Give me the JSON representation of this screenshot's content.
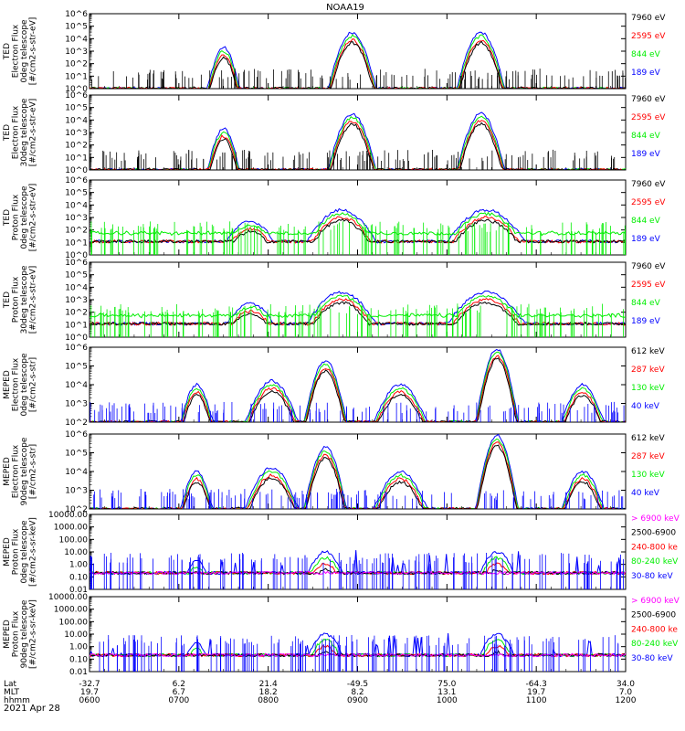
{
  "title": "NOAA19",
  "date": "2021 Apr 28",
  "colors": {
    "black": "#000000",
    "red": "#ff0000",
    "green": "#00ee00",
    "blue": "#0000ff",
    "magenta": "#ff00ff"
  },
  "xaxis": {
    "row_labels": [
      "Lat",
      "MLT",
      "hhmm"
    ],
    "columns": [
      {
        "lat": "-32.7",
        "mlt": "19.7",
        "hhmm": "0600"
      },
      {
        "lat": "6.2",
        "mlt": "6.7",
        "hhmm": "0700"
      },
      {
        "lat": "21.4",
        "mlt": "18.2",
        "hhmm": "0800"
      },
      {
        "lat": "-49.5",
        "mlt": "8.2",
        "hhmm": "0900"
      },
      {
        "lat": "75.0",
        "mlt": "13.1",
        "hhmm": "1000"
      },
      {
        "lat": "-64.3",
        "mlt": "19.7",
        "hhmm": "1100"
      },
      {
        "lat": "34.0",
        "mlt": "7.0",
        "hhmm": "1200"
      }
    ]
  },
  "chart_data": [
    {
      "type": "line",
      "ylabel": [
        "TED",
        "Electron Flux",
        "0deg telescope",
        "[#/cm2-s-str-eV]"
      ],
      "ylim": [
        1,
        1000000
      ],
      "yscale": "log",
      "yticks": [
        "10^0",
        "10^1",
        "10^2",
        "10^3",
        "10^4",
        "10^5",
        "10^6"
      ],
      "legend": [
        {
          "text": "7960 eV",
          "color": "#000000"
        },
        {
          "text": "2595 eV",
          "color": "#ff0000"
        },
        {
          "text": "844 eV",
          "color": "#00ee00"
        },
        {
          "text": "189 eV",
          "color": "#0000ff"
        }
      ]
    },
    {
      "type": "line",
      "ylabel": [
        "TED",
        "Electron Flux",
        "30deg telescope",
        "[#/cm2-s-str-eV]"
      ],
      "ylim": [
        1,
        1000000
      ],
      "yscale": "log",
      "yticks": [
        "10^0",
        "10^1",
        "10^2",
        "10^3",
        "10^4",
        "10^5",
        "10^6"
      ],
      "legend": [
        {
          "text": "7960 eV",
          "color": "#000000"
        },
        {
          "text": "2595 eV",
          "color": "#ff0000"
        },
        {
          "text": "844 eV",
          "color": "#00ee00"
        },
        {
          "text": "189 eV",
          "color": "#0000ff"
        }
      ]
    },
    {
      "type": "line",
      "ylabel": [
        "TED",
        "Proton Flux",
        "0deg telescope",
        "[#/cm2-s-str-eV]"
      ],
      "ylim": [
        1,
        1000000
      ],
      "yscale": "log",
      "yticks": [
        "10^0",
        "10^1",
        "10^2",
        "10^3",
        "10^4",
        "10^5",
        "10^6"
      ],
      "legend": [
        {
          "text": "7960 eV",
          "color": "#000000"
        },
        {
          "text": "2595 eV",
          "color": "#ff0000"
        },
        {
          "text": "844 eV",
          "color": "#00ee00"
        },
        {
          "text": "189 eV",
          "color": "#0000ff"
        }
      ]
    },
    {
      "type": "line",
      "ylabel": [
        "TED",
        "Proton Flux",
        "30deg telescope",
        "[#/cm2-s-str-eV]"
      ],
      "ylim": [
        1,
        1000000
      ],
      "yscale": "log",
      "yticks": [
        "10^0",
        "10^1",
        "10^2",
        "10^3",
        "10^4",
        "10^5",
        "10^6"
      ],
      "legend": [
        {
          "text": "7960 eV",
          "color": "#000000"
        },
        {
          "text": "2595 eV",
          "color": "#ff0000"
        },
        {
          "text": "844 eV",
          "color": "#00ee00"
        },
        {
          "text": "189 eV",
          "color": "#0000ff"
        }
      ]
    },
    {
      "type": "line",
      "ylabel": [
        "MEPED",
        "Electron Flux",
        "0deg telescope",
        "[#/cm2-s-str]"
      ],
      "ylim": [
        100,
        1000000
      ],
      "yscale": "log",
      "yticks": [
        "10^2",
        "10^3",
        "10^4",
        "10^5",
        "10^6"
      ],
      "legend": [
        {
          "text": "612 keV",
          "color": "#000000"
        },
        {
          "text": "287 keV",
          "color": "#ff0000"
        },
        {
          "text": "130 keV",
          "color": "#00ee00"
        },
        {
          "text": "40 keV",
          "color": "#0000ff"
        }
      ]
    },
    {
      "type": "line",
      "ylabel": [
        "MEPED",
        "Electron Flux",
        "90deg telescope",
        "[#/cm2-s-str]"
      ],
      "ylim": [
        100,
        1000000
      ],
      "yscale": "log",
      "yticks": [
        "10^2",
        "10^3",
        "10^4",
        "10^5",
        "10^6"
      ],
      "legend": [
        {
          "text": "612 keV",
          "color": "#000000"
        },
        {
          "text": "287 keV",
          "color": "#ff0000"
        },
        {
          "text": "130 keV",
          "color": "#00ee00"
        },
        {
          "text": "40 keV",
          "color": "#0000ff"
        }
      ]
    },
    {
      "type": "line",
      "ylabel": [
        "MEPED",
        "Proton Flux",
        "0deg telescope",
        "[#/cm2-s-sr-keV]"
      ],
      "ylim": [
        0.01,
        10000
      ],
      "yscale": "log",
      "yticks": [
        "0.01",
        "0.10",
        "1.00",
        "10.00",
        "100.00",
        "1000.00",
        "10000.00"
      ],
      "legend": [
        {
          "text": "> 6900 keV",
          "color": "#ff00ff"
        },
        {
          "text": "2500-6900",
          "color": "#000000"
        },
        {
          "text": "240-800 ke",
          "color": "#ff0000"
        },
        {
          "text": "80-240 keV",
          "color": "#00ee00"
        },
        {
          "text": "30-80 keV",
          "color": "#0000ff"
        }
      ]
    },
    {
      "type": "line",
      "ylabel": [
        "MEPED",
        "Proton Flux",
        "90deg telescope",
        "[#/cm2-s-sr-keV]"
      ],
      "ylim": [
        0.01,
        10000
      ],
      "yscale": "log",
      "yticks": [
        "0.01",
        "0.10",
        "1.00",
        "10.00",
        "100.00",
        "1000.00",
        "10000.00"
      ],
      "legend": [
        {
          "text": "> 6900 keV",
          "color": "#ff00ff"
        },
        {
          "text": "2500-6900",
          "color": "#000000"
        },
        {
          "text": "240-800 ke",
          "color": "#ff0000"
        },
        {
          "text": "80-240 keV",
          "color": "#00ee00"
        },
        {
          "text": "30-80 keV",
          "color": "#0000ff"
        }
      ]
    }
  ]
}
